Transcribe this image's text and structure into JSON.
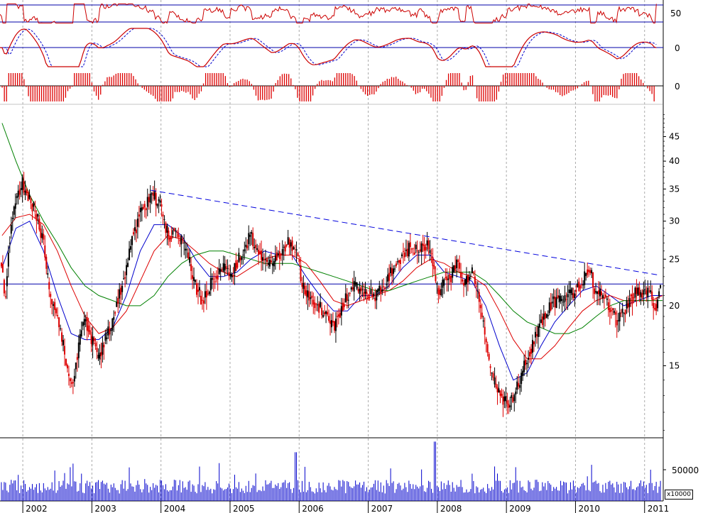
{
  "chart_data": [
    {
      "type": "line",
      "panel": "oscillator-1",
      "tick_labels": [
        "50"
      ],
      "reference_levels": [
        60,
        40
      ],
      "ylim": [
        30,
        70
      ]
    },
    {
      "type": "line",
      "panel": "oscillator-2",
      "tick_labels": [
        "0"
      ],
      "reference_levels": [
        0
      ],
      "series": [
        {
          "style": "solid"
        },
        {
          "style": "dashed"
        }
      ]
    },
    {
      "type": "bar",
      "panel": "oscillator-histogram",
      "tick_labels": [
        "0"
      ],
      "reference_levels": [
        0
      ]
    },
    {
      "type": "candlestick",
      "panel": "price",
      "x_tick_labels": [
        "2002",
        "2003",
        "2004",
        "2005",
        "2006",
        "2007",
        "2008",
        "2009",
        "2010",
        "2011"
      ],
      "y_tick_labels": [
        "45",
        "40",
        "35",
        "30",
        "25",
        "20",
        "15"
      ],
      "y_ticks": [
        45,
        40,
        35,
        30,
        25,
        20,
        15
      ],
      "scale": "log",
      "ylim": [
        10.8,
        52
      ],
      "x_range": [
        2001.67,
        2011.27
      ],
      "horizontal_line": 22.2,
      "trendline": {
        "style": "dashed",
        "from": [
          2003.85,
          34.8
        ],
        "to": [
          2011.18,
          23.2
        ]
      },
      "price_path": [
        [
          2001.7,
          25
        ],
        [
          2001.75,
          20
        ],
        [
          2001.8,
          27
        ],
        [
          2001.9,
          33
        ],
        [
          2002.0,
          36
        ],
        [
          2002.1,
          33
        ],
        [
          2002.2,
          31
        ],
        [
          2002.3,
          27
        ],
        [
          2002.4,
          21
        ],
        [
          2002.5,
          19
        ],
        [
          2002.6,
          16
        ],
        [
          2002.72,
          13.5
        ],
        [
          2002.8,
          16
        ],
        [
          2002.9,
          19
        ],
        [
          2003.0,
          17
        ],
        [
          2003.1,
          15.5
        ],
        [
          2003.2,
          17
        ],
        [
          2003.3,
          18.5
        ],
        [
          2003.4,
          21
        ],
        [
          2003.5,
          24
        ],
        [
          2003.6,
          28
        ],
        [
          2003.7,
          31
        ],
        [
          2003.8,
          33
        ],
        [
          2003.9,
          34
        ],
        [
          2004.0,
          32
        ],
        [
          2004.1,
          28
        ],
        [
          2004.2,
          28.5
        ],
        [
          2004.3,
          27
        ],
        [
          2004.4,
          25
        ],
        [
          2004.5,
          22
        ],
        [
          2004.6,
          20.5
        ],
        [
          2004.7,
          22
        ],
        [
          2004.8,
          23
        ],
        [
          2004.9,
          24
        ],
        [
          2005.0,
          23
        ],
        [
          2005.1,
          24.5
        ],
        [
          2005.2,
          26.5
        ],
        [
          2005.3,
          28
        ],
        [
          2005.4,
          26
        ],
        [
          2005.5,
          25
        ],
        [
          2005.6,
          24
        ],
        [
          2005.7,
          25.5
        ],
        [
          2005.85,
          27.5
        ],
        [
          2005.95,
          26
        ],
        [
          2006.05,
          22
        ],
        [
          2006.15,
          20.5
        ],
        [
          2006.3,
          20
        ],
        [
          2006.4,
          19
        ],
        [
          2006.5,
          18
        ],
        [
          2006.6,
          19.5
        ],
        [
          2006.7,
          21
        ],
        [
          2006.8,
          22
        ],
        [
          2006.9,
          21.5
        ],
        [
          2007.0,
          21
        ],
        [
          2007.1,
          21
        ],
        [
          2007.2,
          22
        ],
        [
          2007.3,
          23
        ],
        [
          2007.4,
          24.5
        ],
        [
          2007.5,
          25.5
        ],
        [
          2007.6,
          26.5
        ],
        [
          2007.7,
          26
        ],
        [
          2007.8,
          27
        ],
        [
          2007.9,
          26
        ],
        [
          2008.0,
          21.5
        ],
        [
          2008.1,
          22
        ],
        [
          2008.2,
          23
        ],
        [
          2008.3,
          24.5
        ],
        [
          2008.4,
          22
        ],
        [
          2008.5,
          24
        ],
        [
          2008.6,
          21
        ],
        [
          2008.7,
          17
        ],
        [
          2008.8,
          14
        ],
        [
          2008.9,
          13
        ],
        [
          2009.0,
          12.5
        ],
        [
          2009.1,
          13
        ],
        [
          2009.2,
          14
        ],
        [
          2009.3,
          15.5
        ],
        [
          2009.4,
          17
        ],
        [
          2009.5,
          18.5
        ],
        [
          2009.6,
          19.5
        ],
        [
          2009.7,
          20.5
        ],
        [
          2009.8,
          20.5
        ],
        [
          2009.9,
          21
        ],
        [
          2010.0,
          21.5
        ],
        [
          2010.1,
          22.5
        ],
        [
          2010.2,
          24
        ],
        [
          2010.25,
          22.5
        ],
        [
          2010.3,
          21
        ],
        [
          2010.4,
          21
        ],
        [
          2010.5,
          20
        ],
        [
          2010.6,
          18.5
        ],
        [
          2010.7,
          19.5
        ],
        [
          2010.8,
          20.5
        ],
        [
          2010.9,
          21.5
        ],
        [
          2011.0,
          21.5
        ],
        [
          2011.1,
          21
        ],
        [
          2011.15,
          19.5
        ],
        [
          2011.2,
          21
        ],
        [
          2011.26,
          23
        ]
      ],
      "moving_averages": [
        {
          "color": "#0000cc",
          "path": [
            [
              2001.7,
              24
            ],
            [
              2001.9,
              29
            ],
            [
              2002.1,
              30
            ],
            [
              2002.3,
              26
            ],
            [
              2002.5,
              21
            ],
            [
              2002.7,
              17.5
            ],
            [
              2002.9,
              17
            ],
            [
              2003.1,
              17
            ],
            [
              2003.3,
              18
            ],
            [
              2003.5,
              21
            ],
            [
              2003.7,
              26
            ],
            [
              2003.9,
              29.5
            ],
            [
              2004.1,
              29.5
            ],
            [
              2004.3,
              28
            ],
            [
              2004.5,
              25
            ],
            [
              2004.7,
              23
            ],
            [
              2004.9,
              23
            ],
            [
              2005.1,
              23.5
            ],
            [
              2005.3,
              25
            ],
            [
              2005.5,
              26
            ],
            [
              2005.7,
              25.5
            ],
            [
              2005.9,
              25.5
            ],
            [
              2006.1,
              23
            ],
            [
              2006.3,
              21
            ],
            [
              2006.5,
              19.5
            ],
            [
              2006.7,
              19.5
            ],
            [
              2006.9,
              21
            ],
            [
              2007.1,
              21
            ],
            [
              2007.3,
              22
            ],
            [
              2007.5,
              24
            ],
            [
              2007.7,
              25.5
            ],
            [
              2007.9,
              25.5
            ],
            [
              2008.1,
              23.5
            ],
            [
              2008.3,
              23
            ],
            [
              2008.5,
              22.5
            ],
            [
              2008.7,
              20
            ],
            [
              2008.9,
              16.5
            ],
            [
              2009.1,
              14
            ],
            [
              2009.3,
              14.5
            ],
            [
              2009.5,
              16.5
            ],
            [
              2009.7,
              18.5
            ],
            [
              2009.9,
              20
            ],
            [
              2010.1,
              21.5
            ],
            [
              2010.3,
              22
            ],
            [
              2010.5,
              21
            ],
            [
              2010.7,
              20
            ],
            [
              2010.9,
              20.5
            ],
            [
              2011.1,
              21
            ],
            [
              2011.26,
              21
            ]
          ]
        },
        {
          "color": "#dd0000",
          "path": [
            [
              2001.7,
              28
            ],
            [
              2001.9,
              30.5
            ],
            [
              2002.1,
              31
            ],
            [
              2002.3,
              29.5
            ],
            [
              2002.5,
              26
            ],
            [
              2002.7,
              22
            ],
            [
              2002.9,
              19
            ],
            [
              2003.1,
              17.5
            ],
            [
              2003.3,
              18
            ],
            [
              2003.5,
              19.5
            ],
            [
              2003.7,
              22.5
            ],
            [
              2003.9,
              26
            ],
            [
              2004.1,
              28
            ],
            [
              2004.3,
              27.5
            ],
            [
              2004.5,
              26
            ],
            [
              2004.7,
              24.5
            ],
            [
              2004.9,
              23.5
            ],
            [
              2005.1,
              23
            ],
            [
              2005.3,
              24
            ],
            [
              2005.5,
              25
            ],
            [
              2005.7,
              25.5
            ],
            [
              2005.9,
              25.5
            ],
            [
              2006.1,
              24.5
            ],
            [
              2006.3,
              22.5
            ],
            [
              2006.5,
              20.5
            ],
            [
              2006.7,
              20
            ],
            [
              2006.9,
              20.5
            ],
            [
              2007.1,
              21
            ],
            [
              2007.3,
              21.5
            ],
            [
              2007.5,
              22.5
            ],
            [
              2007.7,
              24
            ],
            [
              2007.9,
              25
            ],
            [
              2008.1,
              24.5
            ],
            [
              2008.3,
              23.5
            ],
            [
              2008.5,
              23
            ],
            [
              2008.7,
              22
            ],
            [
              2008.9,
              19.5
            ],
            [
              2009.1,
              17
            ],
            [
              2009.3,
              15.5
            ],
            [
              2009.5,
              15.5
            ],
            [
              2009.7,
              16.5
            ],
            [
              2009.9,
              18
            ],
            [
              2010.1,
              19.5
            ],
            [
              2010.3,
              20.5
            ],
            [
              2010.5,
              21
            ],
            [
              2010.7,
              20.5
            ],
            [
              2010.9,
              20.5
            ],
            [
              2011.1,
              20.5
            ],
            [
              2011.26,
              21
            ]
          ]
        },
        {
          "color": "#008000",
          "path": [
            [
              2001.7,
              48
            ],
            [
              2001.9,
              40
            ],
            [
              2002.1,
              34
            ],
            [
              2002.3,
              30
            ],
            [
              2002.5,
              27
            ],
            [
              2002.7,
              24
            ],
            [
              2002.9,
              22
            ],
            [
              2003.1,
              21
            ],
            [
              2003.3,
              20.5
            ],
            [
              2003.5,
              20
            ],
            [
              2003.7,
              20
            ],
            [
              2003.9,
              21
            ],
            [
              2004.1,
              23
            ],
            [
              2004.3,
              24.5
            ],
            [
              2004.5,
              25.5
            ],
            [
              2004.7,
              26
            ],
            [
              2004.9,
              26
            ],
            [
              2005.1,
              25.5
            ],
            [
              2005.3,
              25
            ],
            [
              2005.5,
              24.5
            ],
            [
              2005.7,
              24.5
            ],
            [
              2005.9,
              24.5
            ],
            [
              2006.1,
              24
            ],
            [
              2006.3,
              23.5
            ],
            [
              2006.5,
              23
            ],
            [
              2006.7,
              22.5
            ],
            [
              2006.9,
              22
            ],
            [
              2007.1,
              21.5
            ],
            [
              2007.3,
              21.5
            ],
            [
              2007.5,
              22
            ],
            [
              2007.7,
              22.5
            ],
            [
              2007.9,
              23
            ],
            [
              2008.1,
              23.5
            ],
            [
              2008.3,
              23.5
            ],
            [
              2008.5,
              23.5
            ],
            [
              2008.7,
              22.5
            ],
            [
              2008.9,
              21
            ],
            [
              2009.1,
              19.5
            ],
            [
              2009.3,
              18.5
            ],
            [
              2009.5,
              18
            ],
            [
              2009.7,
              17.5
            ],
            [
              2009.9,
              17.5
            ],
            [
              2010.1,
              18
            ],
            [
              2010.3,
              19
            ],
            [
              2010.5,
              20
            ],
            [
              2010.7,
              20.5
            ],
            [
              2010.9,
              20.5
            ],
            [
              2011.1,
              20.5
            ],
            [
              2011.26,
              20.5
            ]
          ]
        }
      ]
    },
    {
      "type": "bar",
      "panel": "volume",
      "tick_labels": [
        "50000"
      ],
      "y_ticks": [
        50000
      ],
      "ylim": [
        0,
        100000
      ],
      "unit_label": "x10000",
      "color": "#0000cc"
    }
  ]
}
